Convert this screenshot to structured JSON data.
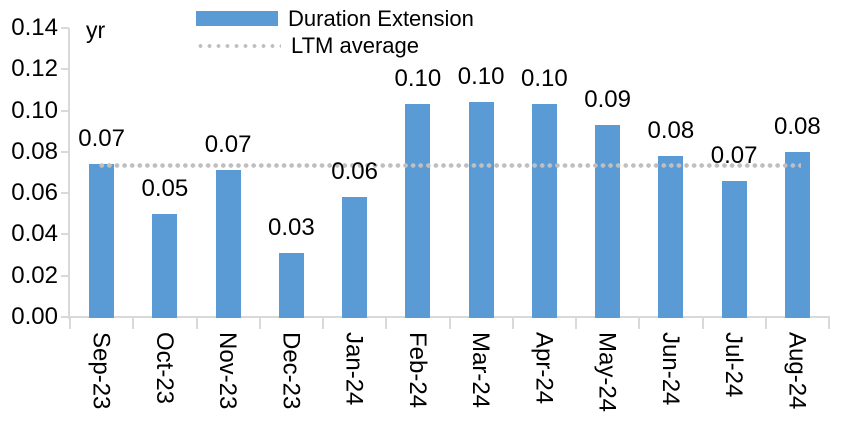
{
  "chart_data": {
    "type": "bar",
    "title": "",
    "ylabel": "yr",
    "xlabel": "",
    "categories": [
      "Sep-23",
      "Oct-23",
      "Nov-23",
      "Dec-23",
      "Jan-24",
      "Feb-24",
      "Mar-24",
      "Apr-24",
      "May-24",
      "Jun-24",
      "Jul-24",
      "Aug-24"
    ],
    "series": [
      {
        "name": "Duration Extension",
        "type": "bar",
        "color": "#5B9BD5",
        "values": [
          0.07,
          0.05,
          0.07,
          0.03,
          0.06,
          0.1,
          0.1,
          0.1,
          0.09,
          0.08,
          0.07,
          0.08
        ],
        "data_labels": [
          "0.07",
          "0.05",
          "0.07",
          "0.03",
          "0.06",
          "0.10",
          "0.10",
          "0.10",
          "0.09",
          "0.08",
          "0.07",
          "0.08"
        ],
        "bar_heights_precise": [
          0.074,
          0.05,
          0.071,
          0.031,
          0.058,
          0.103,
          0.104,
          0.103,
          0.093,
          0.078,
          0.066,
          0.08
        ]
      }
    ],
    "reference_line": {
      "name": "LTM average",
      "value": 0.0735,
      "style": "dotted",
      "color": "#BFBFBF"
    },
    "ylim": [
      0,
      0.14
    ],
    "ytick_values": [
      0.14,
      0.12,
      0.1,
      0.08,
      0.06,
      0.04,
      0.02,
      0.0
    ],
    "ytick_labels": [
      "0.14",
      "0.12",
      "0.10",
      "0.08",
      "0.06",
      "0.04",
      "0.02",
      "0.00"
    ],
    "grid": false,
    "legend_position": "top-center"
  },
  "colors": {
    "bar": "#5B9BD5",
    "reference_line": "#BFBFBF",
    "axis": "#D9D9D9",
    "text": "#000000",
    "background": "#FFFFFF"
  }
}
